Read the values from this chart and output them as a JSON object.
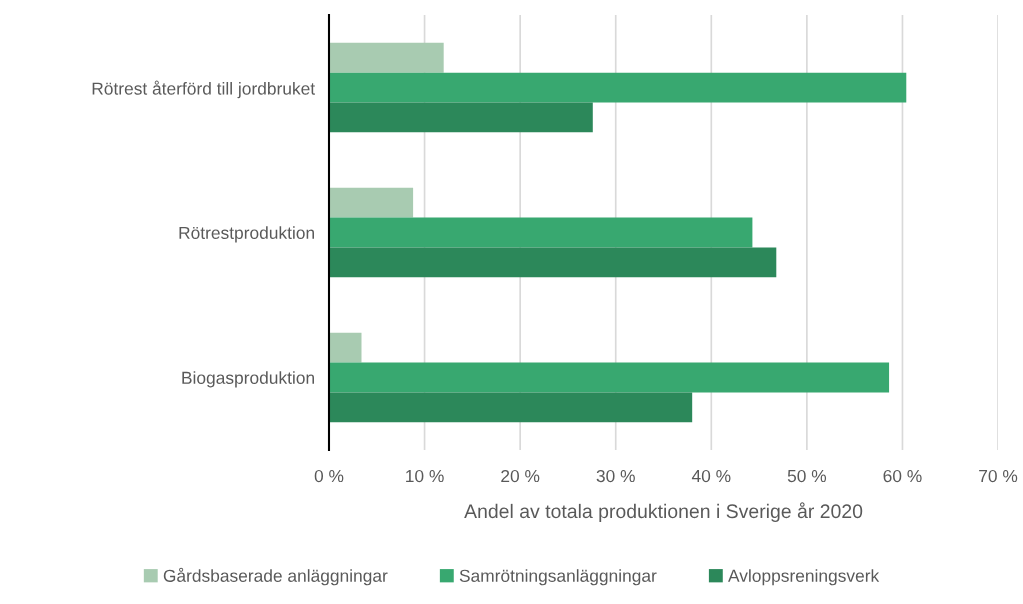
{
  "chart_data": {
    "type": "bar",
    "orientation": "horizontal",
    "xlabel": "Andel av totala produktionen i Sverige år 2020",
    "categories": [
      "Rötrest återförd till jordbruket",
      "Rötrestproduktion",
      "Biogasproduktion"
    ],
    "series": [
      {
        "name": "Gårdsbaserade anläggningar",
        "color": "#a8cbb1",
        "values": [
          12.0,
          8.8,
          3.4
        ]
      },
      {
        "name": "Samrötningsanläggningar",
        "color": "#38a870",
        "values": [
          60.4,
          44.3,
          58.6
        ]
      },
      {
        "name": "Avloppsreningsverk",
        "color": "#2c885a",
        "values": [
          27.6,
          46.8,
          38.0
        ]
      }
    ],
    "xlim": [
      0,
      70
    ],
    "xticks": [
      {
        "value": 0,
        "label": "0 %"
      },
      {
        "value": 10,
        "label": "10 %"
      },
      {
        "value": 20,
        "label": "20 %"
      },
      {
        "value": 30,
        "label": "30 %"
      },
      {
        "value": 40,
        "label": "40 %"
      },
      {
        "value": 50,
        "label": "50 %"
      },
      {
        "value": 60,
        "label": "60 %"
      },
      {
        "value": 70,
        "label": "70 %"
      }
    ],
    "grid": "x",
    "legend": "bottom"
  }
}
